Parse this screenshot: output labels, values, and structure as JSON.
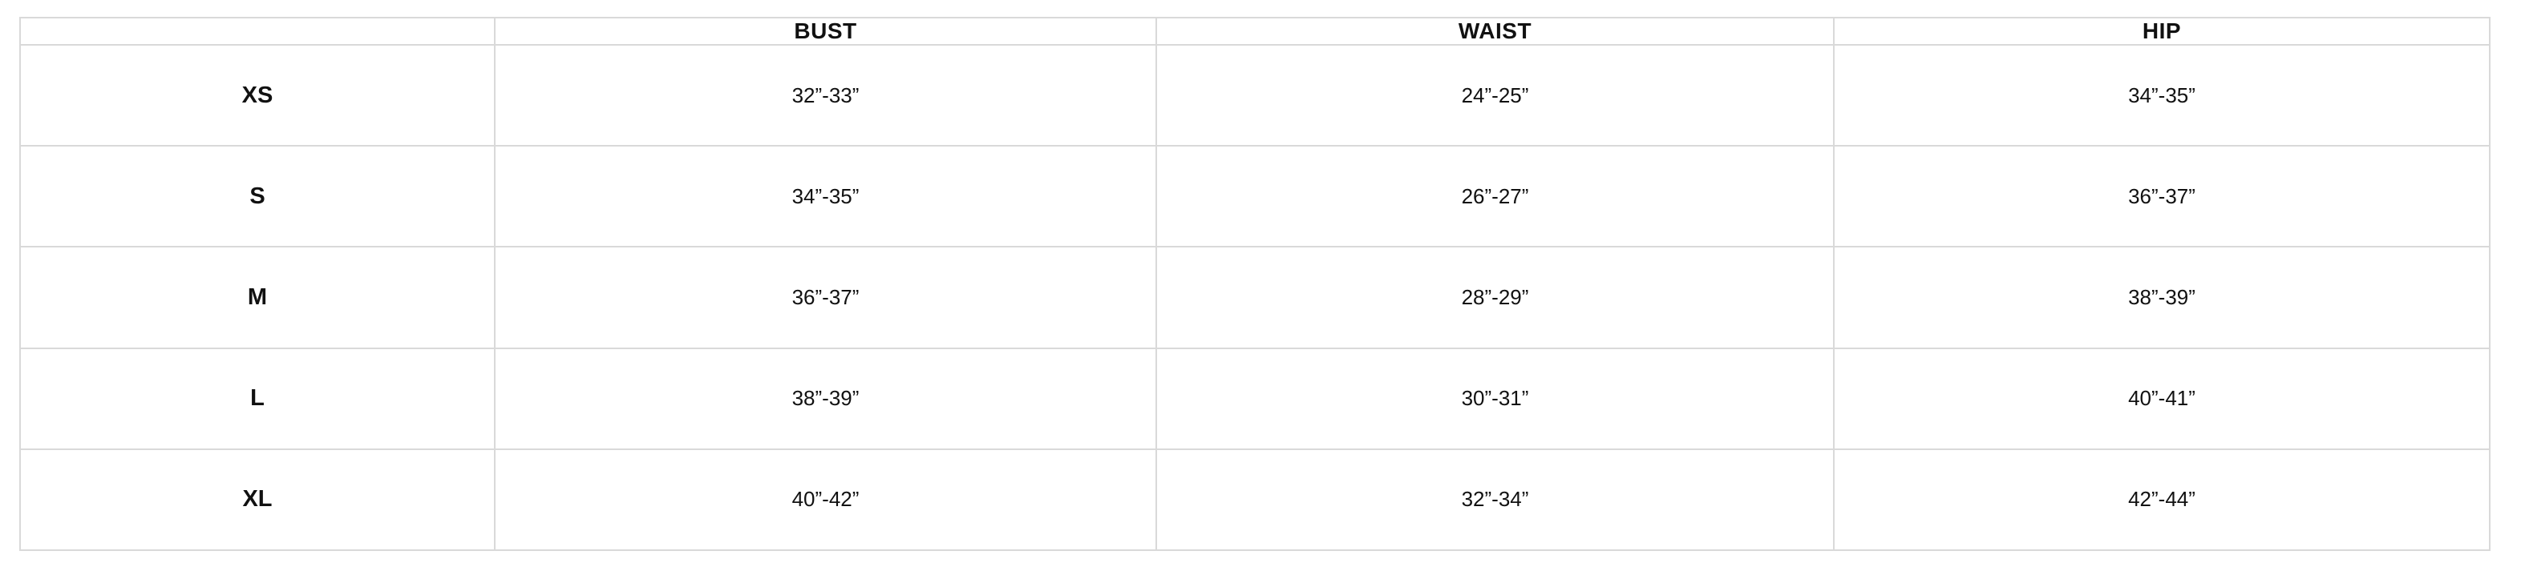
{
  "headers": [
    "",
    "BUST",
    "WAIST",
    "HIP"
  ],
  "rows": [
    {
      "size": "XS",
      "bust": "32”-33”",
      "waist": "24”-25”",
      "hip": "34”-35”"
    },
    {
      "size": "S",
      "bust": "34”-35”",
      "waist": "26”-27”",
      "hip": "36”-37”"
    },
    {
      "size": "M",
      "bust": "36”-37”",
      "waist": "28”-29”",
      "hip": "38”-39”"
    },
    {
      "size": "L",
      "bust": "38”-39”",
      "waist": "30”-31”",
      "hip": "40”-41”"
    },
    {
      "size": "XL",
      "bust": "40”-42”",
      "waist": "32”-34”",
      "hip": "42”-44”"
    }
  ]
}
